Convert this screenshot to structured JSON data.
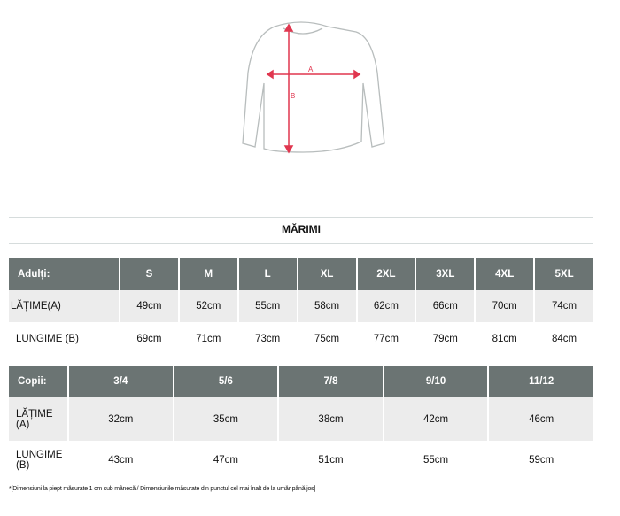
{
  "diagram": {
    "label_a": "A",
    "label_b": "B",
    "arrow_color": "#e0364f"
  },
  "title": "MĂRIMI",
  "adults": {
    "header": "Adulți:",
    "sizes": [
      "S",
      "M",
      "L",
      "XL",
      "2XL",
      "3XL",
      "4XL",
      "5XL"
    ],
    "rows": [
      {
        "label": "LĂȚIME(A)",
        "values": [
          "49cm",
          "52cm",
          "55cm",
          "58cm",
          "62cm",
          "66cm",
          "70cm",
          "74cm"
        ]
      },
      {
        "label": "LUNGIME (B)",
        "values": [
          "69cm",
          "71cm",
          "73cm",
          "75cm",
          "77cm",
          "79cm",
          "81cm",
          "84cm"
        ]
      }
    ]
  },
  "kids": {
    "header": "Copii:",
    "sizes": [
      "3/4",
      "5/6",
      "7/8",
      "9/10",
      "11/12"
    ],
    "rows": [
      {
        "label": "LĂȚIME (A)",
        "values": [
          "32cm",
          "35cm",
          "38cm",
          "42cm",
          "46cm"
        ]
      },
      {
        "label": "LUNGIME (B)",
        "values": [
          "43cm",
          "47cm",
          "51cm",
          "55cm",
          "59cm"
        ]
      }
    ]
  },
  "footnote": "*[Dimensiuni la piept măsurate 1 cm sub mânecă / Dimensiunile măsurate din punctul cel mai înalt de la umăr până jos]",
  "colors": {
    "header_bg": "#6b7473",
    "row_bg": "#ececec"
  }
}
